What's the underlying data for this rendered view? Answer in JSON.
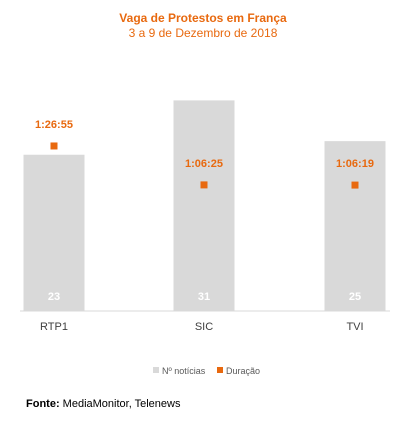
{
  "chart_data": {
    "type": "bar",
    "title": "Vaga de Protestos em França",
    "subtitle": "3 a 9 de Dezembro de 2018",
    "categories": [
      "RTP1",
      "SIC",
      "TVI"
    ],
    "series": [
      {
        "name": "Nº notícias",
        "type": "bar",
        "values": [
          23,
          31,
          25
        ],
        "color": "#d9d9d9"
      },
      {
        "name": "Duração",
        "type": "point",
        "values": [
          "1:26:55",
          "1:06:25",
          "1:06:19"
        ],
        "seconds": [
          5215,
          3985,
          3979
        ],
        "color": "#e8690f"
      }
    ],
    "ylim_bars": [
      0,
      34
    ],
    "ylim_duration_seconds": [
      0,
      7300
    ],
    "legend_position": "bottom"
  },
  "source": {
    "label": "Fonte:",
    "text": " MediaMonitor, Telenews"
  }
}
